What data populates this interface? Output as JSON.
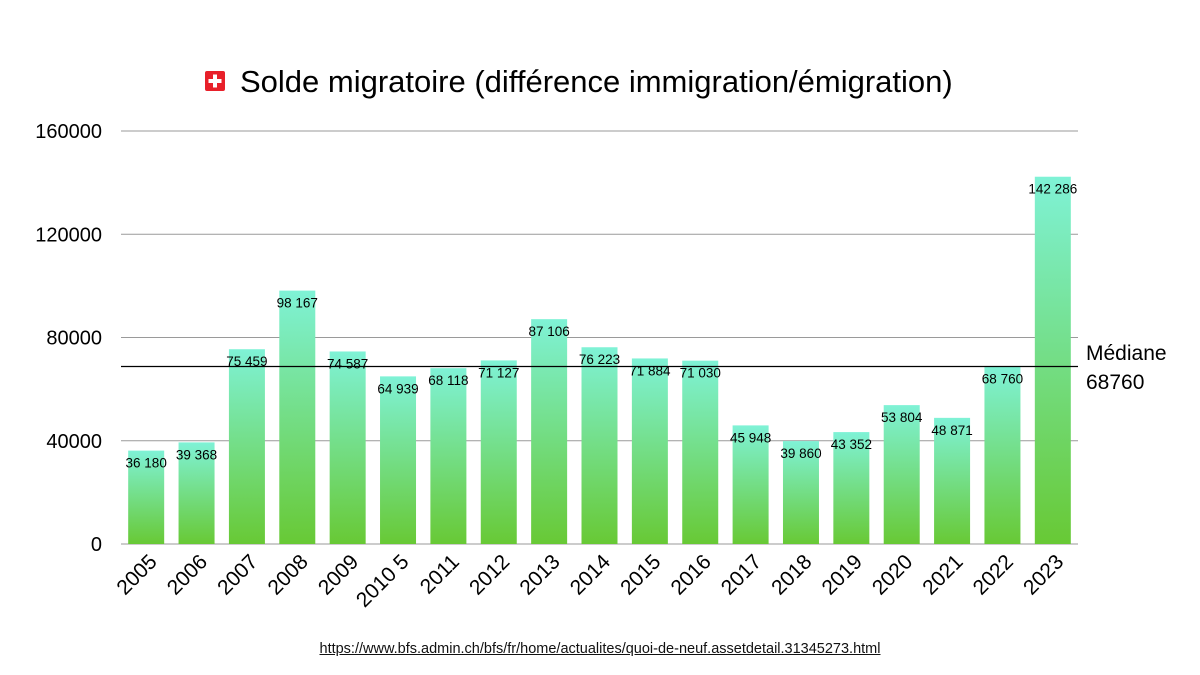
{
  "chart_data": {
    "type": "bar",
    "title": "Solde migratoire (différence immigration/émigration)",
    "title_icon": "swiss-flag-icon",
    "categories": [
      "2005",
      "2006",
      "2007",
      "2008",
      "2009",
      "2010 5",
      "2011",
      "2012",
      "2013",
      "2014",
      "2015",
      "2016",
      "2017",
      "2018",
      "2019",
      "2020",
      "2021",
      "2022",
      "2023"
    ],
    "values": [
      36180,
      39368,
      75459,
      98167,
      74587,
      64939,
      68118,
      71127,
      87106,
      76223,
      71884,
      71030,
      45948,
      39860,
      43352,
      53804,
      48871,
      68760,
      142286
    ],
    "value_labels": [
      "36 180",
      "39 368",
      "75 459",
      "98 167",
      "74 587",
      "64 939",
      "68 118",
      "71 127",
      "87 106",
      "76 223",
      "71 884",
      "71 030",
      "45 948",
      "39 860",
      "43 352",
      "53 804",
      "48 871",
      "68 760",
      "142 286"
    ],
    "ylim": [
      0,
      160000
    ],
    "yticks": [
      0,
      40000,
      80000,
      120000,
      160000
    ],
    "ytick_labels": [
      "0",
      "40000",
      "80000",
      "120000",
      "160000"
    ],
    "xlabel": "",
    "ylabel": "",
    "grid": true,
    "median": {
      "value": 68760,
      "label_line1": "Médiane",
      "label_line2": "68760"
    },
    "colors": {
      "bar_top": "#7ff2d6",
      "bar_bottom": "#68c935",
      "grid": "#9a9a9a",
      "median_line": "#000000"
    }
  },
  "source": {
    "url_text": "https://www.bfs.admin.ch/bfs/fr/home/actualites/quoi-de-neuf.assetdetail.31345273.html"
  }
}
